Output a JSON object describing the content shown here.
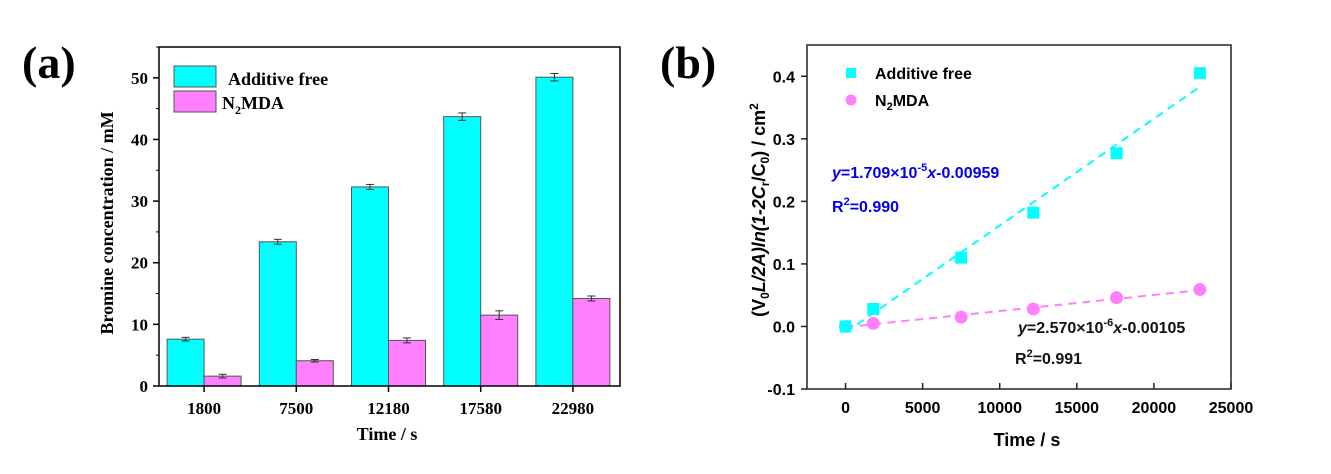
{
  "chart_data": [
    {
      "panel_label": "(a)",
      "type": "bar",
      "title": "",
      "xlabel": "Time / s",
      "ylabel": "Bromine concentration / mM",
      "categories": [
        "1800",
        "7500",
        "12180",
        "17580",
        "22980"
      ],
      "ylim": [
        0,
        55
      ],
      "yticks": [
        0,
        10,
        20,
        30,
        40,
        50
      ],
      "ytick_labels": [
        "0",
        "10",
        "20",
        "30",
        "40",
        "50"
      ],
      "grid": false,
      "legend_position": "top-left",
      "legend": [
        {
          "label": "Additive free",
          "sub": "",
          "label_rest": ""
        },
        {
          "label": "N",
          "sub": "2",
          "label_rest": "MDA"
        }
      ],
      "series": [
        {
          "name": "Additive free",
          "color": "#00FFFF",
          "values": [
            7.6,
            23.4,
            32.3,
            43.7,
            50.1
          ],
          "errors": [
            0.3,
            0.4,
            0.4,
            0.6,
            0.6
          ]
        },
        {
          "name": "N2MDA",
          "color": "#FF80FF",
          "values": [
            1.6,
            4.1,
            7.4,
            11.5,
            14.2
          ],
          "errors": [
            0.3,
            0.2,
            0.4,
            0.7,
            0.4
          ]
        }
      ]
    },
    {
      "panel_label": "(b)",
      "type": "scatter",
      "title": "",
      "xlabel": "Time / s",
      "ylabel_parts": {
        "a": "(V",
        "a_sub": "0",
        "b": "L/2A)ln(1-2C",
        "b_sub": "r",
        "c": "/C",
        "c_sub": "0",
        "d": ") / cm",
        "d_sup": "2"
      },
      "xlim": [
        -2500,
        25000
      ],
      "ylim": [
        -0.1,
        0.45
      ],
      "xticks": [
        0,
        5000,
        10000,
        15000,
        20000,
        25000
      ],
      "xtick_labels": [
        "0",
        "5000",
        "10000",
        "15000",
        "20000",
        "25000"
      ],
      "yticks": [
        -0.1,
        0.0,
        0.1,
        0.2,
        0.3,
        0.4
      ],
      "ytick_labels": [
        "-0.1",
        "0.0",
        "0.1",
        "0.2",
        "0.3",
        "0.4"
      ],
      "grid": false,
      "legend_position": "top-left",
      "legend": [
        {
          "label": "Additive free",
          "sub": "",
          "label_rest": ""
        },
        {
          "label": "N",
          "sub": "2",
          "label_rest": "MDA"
        }
      ],
      "series": [
        {
          "name": "Additive free",
          "marker": "square",
          "color": "#00FFFF",
          "x": [
            0,
            1800,
            7500,
            12180,
            17580,
            22980
          ],
          "y": [
            0.0,
            0.028,
            0.11,
            0.182,
            0.277,
            0.405
          ],
          "fit": {
            "slope": 1.709e-05,
            "intercept": -0.00959,
            "x_range": [
              0,
              22980
            ]
          },
          "equation": {
            "y": "y",
            "eq": "=1.709×10",
            "exp": "-5",
            "x": "x",
            "rest": "-0.00959"
          },
          "r2": {
            "r": "R",
            "sup": "2",
            "rest": "=0.990"
          },
          "text_color": "#0000EE"
        },
        {
          "name": "N2MDA",
          "marker": "circle",
          "color": "#FF80FF",
          "x": [
            0,
            1800,
            7500,
            12180,
            17580,
            22980
          ],
          "y": [
            0.0,
            0.005,
            0.015,
            0.028,
            0.046,
            0.059
          ],
          "fit": {
            "slope": 2.57e-06,
            "intercept": -0.00105,
            "x_range": [
              0,
              22980
            ]
          },
          "equation": {
            "y": "y",
            "eq": "=2.570×10",
            "exp": "-6",
            "x": "x",
            "rest": "-0.00105"
          },
          "r2": {
            "r": "R",
            "sup": "2",
            "rest": "=0.991"
          },
          "text_color": "#111111"
        }
      ]
    }
  ]
}
